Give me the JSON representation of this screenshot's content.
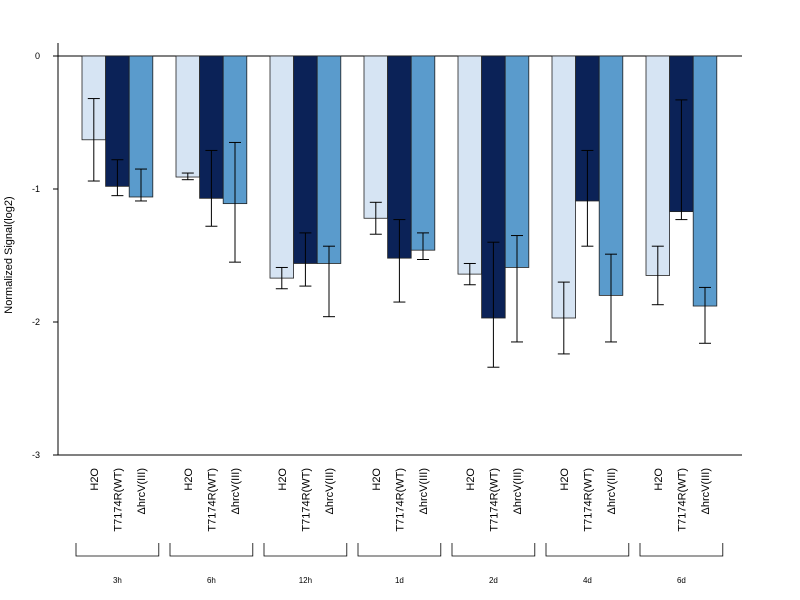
{
  "chart_data": {
    "type": "bar",
    "title": "",
    "ylabel": "Normalized Signal(log2)",
    "xlabel": "",
    "ylim": [
      -3,
      0.1
    ],
    "yticks": [
      "0",
      "-1",
      "-2",
      "-3"
    ],
    "ytick_values": [
      0,
      -1,
      -2,
      -3
    ],
    "groups": [
      "3h",
      "6h",
      "12h",
      "1d",
      "2d",
      "4d",
      "6d"
    ],
    "conditions": [
      "H2O",
      "T7174R(WT)",
      "ΔhrcV(III)"
    ],
    "colors": [
      "#d6e4f3",
      "#0b2257",
      "#5a9bcc"
    ],
    "series": [
      {
        "values": [
          -0.63,
          -0.91,
          -1.67,
          -1.22,
          -1.64,
          -1.97,
          -1.65
        ],
        "error_low": [
          -0.94,
          -0.93,
          -1.75,
          -1.34,
          -1.72,
          -2.24,
          -1.87
        ],
        "error_high": [
          -0.32,
          -0.88,
          -1.59,
          -1.1,
          -1.56,
          -1.7,
          -1.43
        ]
      },
      {
        "values": [
          -0.98,
          -1.07,
          -1.56,
          -1.52,
          -1.97,
          -1.09,
          -1.17
        ],
        "error_low": [
          -1.05,
          -1.28,
          -1.73,
          -1.85,
          -2.34,
          -1.43,
          -1.23
        ],
        "error_high": [
          -0.78,
          -0.71,
          -1.33,
          -1.23,
          -1.4,
          -0.71,
          -0.33
        ]
      },
      {
        "values": [
          -1.06,
          -1.11,
          -1.56,
          -1.46,
          -1.59,
          -1.8,
          -1.88
        ],
        "error_low": [
          -1.09,
          -1.55,
          -1.96,
          -1.53,
          -2.15,
          -2.15,
          -2.16
        ],
        "error_high": [
          -0.85,
          -0.65,
          -1.43,
          -1.33,
          -1.35,
          -1.49,
          -1.74
        ]
      }
    ]
  }
}
